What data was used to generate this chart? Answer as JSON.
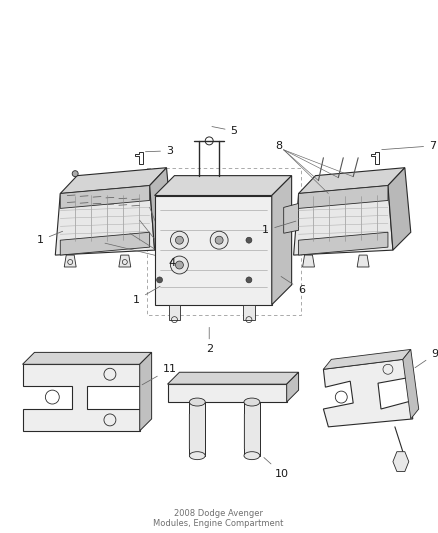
{
  "background_color": "#ffffff",
  "line_color": "#2a2a2a",
  "label_color": "#1a1a1a",
  "figsize": [
    4.38,
    5.33
  ],
  "dpi": 100,
  "callout_lw": 0.55,
  "main_lw": 0.8,
  "gray_fill": "#c8c8c8",
  "light_gray": "#e8e8e8",
  "mid_gray": "#aaaaaa",
  "dark_gray": "#555555"
}
